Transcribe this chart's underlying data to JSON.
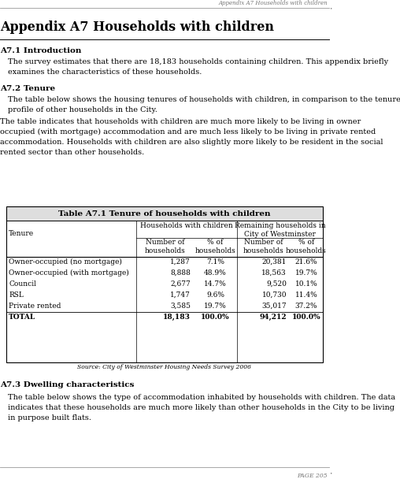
{
  "page_title": "Appendix A7 Households with children",
  "header_italic": "Appendix A7 Households with children",
  "section1_title": "A7.1 Introduction",
  "section1_body": "The survey estimates that there are 18,183 households containing children. This appendix briefly\nexamines the characteristics of these households.",
  "section2_title": "A7.2 Tenure",
  "section2_para1": "The table below shows the housing tenures of households with children, in comparison to the tenure\nprofile of other households in the City.",
  "section2_para2": "The table indicates that households with children are much more likely to be living in owner\noccupied (with mortgage) accommodation and are much less likely to be living in private rented\naccommodation. Households with children are also slightly more likely to be resident in the social\nrented sector than other households.",
  "table_title": "Table A7.1 Tenure of households with children",
  "table_rows": [
    [
      "Owner-occupied (no mortgage)",
      "1,287",
      "7.1%",
      "20,381",
      "21.6%"
    ],
    [
      "Owner-occupied (with mortgage)",
      "8,888",
      "48.9%",
      "18,563",
      "19.7%"
    ],
    [
      "Council",
      "2,677",
      "14.7%",
      "9,520",
      "10.1%"
    ],
    [
      "RSL",
      "1,747",
      "9.6%",
      "10,730",
      "11.4%"
    ],
    [
      "Private rented",
      "3,585",
      "19.7%",
      "35,017",
      "37.2%"
    ],
    [
      "TOTAL",
      "18,183",
      "100.0%",
      "94,212",
      "100.0%"
    ]
  ],
  "table_source": "Source: City of Westminster Housing Needs Survey 2006",
  "section3_title": "A7.3 Dwelling characteristics",
  "section3_body": "The table below shows the type of accommodation inhabited by households with children. The data\nindicates that these households are much more likely than other households in the City to be living\nin purpose built flats.",
  "page_number": "PAGE 205",
  "bg_color": "#ffffff",
  "text_color": "#000000"
}
